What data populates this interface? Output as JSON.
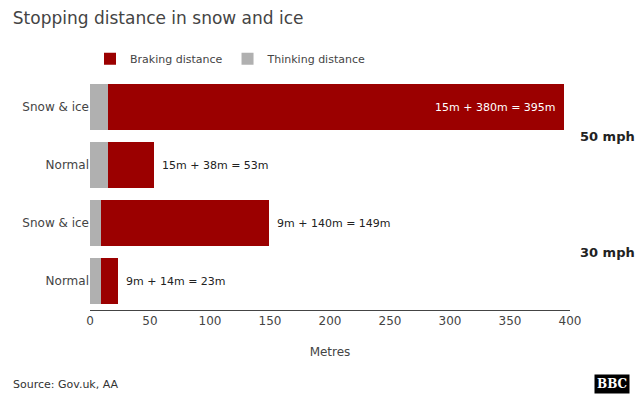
{
  "chart_data": {
    "type": "bar",
    "orientation": "horizontal",
    "stacked": true,
    "title": "Stopping distance in snow and ice",
    "x_label": "Metres",
    "categories": [
      [
        "50 mph",
        "Snow & ice"
      ],
      [
        "50 mph",
        "Normal"
      ],
      [
        "30 mph",
        "Snow & ice"
      ],
      [
        "30 mph",
        "Normal"
      ]
    ],
    "series": [
      {
        "name": "Thinking distance",
        "color": "#b0b0b0",
        "values": [
          15,
          15,
          9,
          9
        ]
      },
      {
        "name": "Braking distance",
        "color": "#9b0000",
        "values": [
          380,
          38,
          140,
          14
        ]
      }
    ],
    "xlim": [
      0,
      400
    ],
    "xticks": [
      0,
      50,
      100,
      150,
      200,
      250,
      300,
      350,
      400
    ],
    "grid": false,
    "legend": "top",
    "annotations": [
      {
        "text": "15m + 380m = 395m",
        "category": 0
      },
      {
        "text": "15m + 38m = 53m",
        "category": 1
      },
      {
        "text": "9m + 140m = 149m",
        "category": 2
      },
      {
        "text": "9m + 14m = 23m",
        "category": 3
      },
      {
        "text": "Source: Gov.uk, AA"
      },
      {
        "text": "BBC"
      }
    ]
  }
}
